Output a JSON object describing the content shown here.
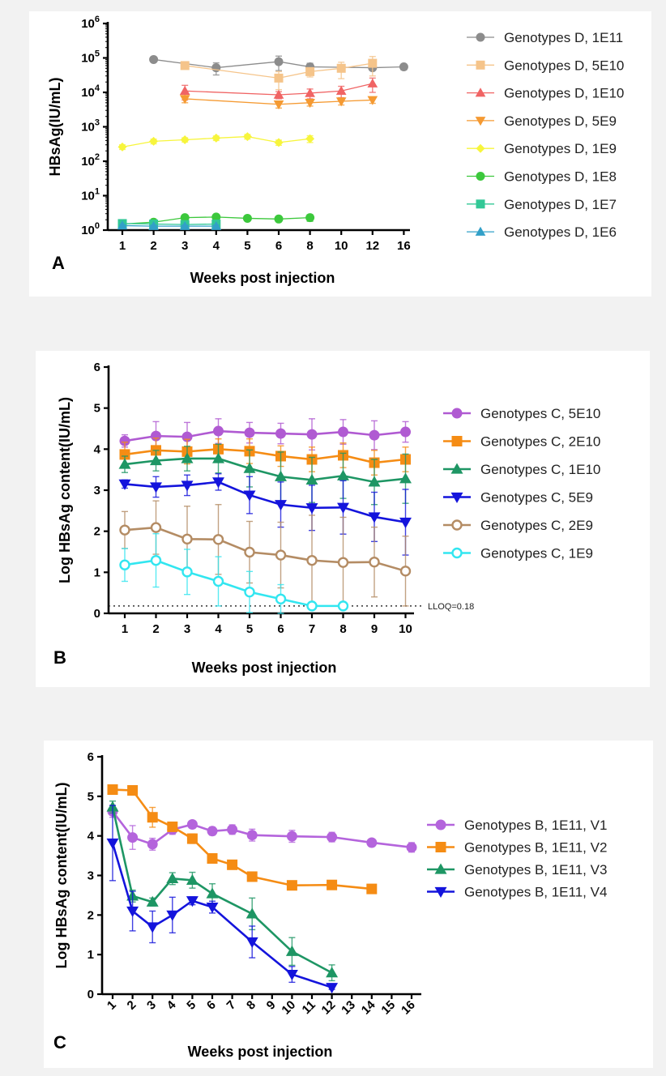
{
  "chart_data": [
    {
      "panel": "A",
      "type": "line",
      "yscale": "log",
      "ylabel": "HBsAg(IU/mL)",
      "xlabel": "Weeks post injection",
      "ylim": [
        1,
        1000000
      ],
      "ytick_exponents": [
        "0",
        "1",
        "2",
        "3",
        "4",
        "5",
        "6"
      ],
      "ytick_base": "10",
      "categories": [
        "1",
        "2",
        "3",
        "4",
        "5",
        "6",
        "8",
        "10",
        "12",
        "16"
      ],
      "series": [
        {
          "name": "Genotypes D, 1E11",
          "color": "#8c8c8c",
          "marker": "circle",
          "x": [
            "2",
            "4",
            "6",
            "8",
            "12",
            "16"
          ],
          "values": [
            90000,
            52000,
            78000,
            55000,
            52000,
            55000
          ],
          "err": [
            0,
            20000,
            35000,
            15000,
            8000,
            10000
          ]
        },
        {
          "name": "Genotypes D, 5E10",
          "color": "#f5c48a",
          "marker": "square",
          "x": [
            "3",
            "6",
            "8",
            "10",
            "12"
          ],
          "values": [
            60000,
            26000,
            40000,
            50000,
            70000
          ],
          "err": [
            8000,
            14000,
            12000,
            25000,
            40000
          ]
        },
        {
          "name": "Genotypes D, 1E10",
          "color": "#f06464",
          "marker": "triangle-up",
          "x": [
            "3",
            "6",
            "8",
            "10",
            "12"
          ],
          "values": [
            11000,
            8500,
            9500,
            11000,
            18000
          ],
          "err": [
            5000,
            2000,
            3000,
            4000,
            8000
          ]
        },
        {
          "name": "Genotypes D, 5E9",
          "color": "#f59a32",
          "marker": "triangle-down",
          "x": [
            "3",
            "6",
            "8",
            "10",
            "12"
          ],
          "values": [
            6500,
            4500,
            5000,
            5500,
            6000
          ],
          "err": [
            1500,
            1000,
            1000,
            1200,
            1200
          ]
        },
        {
          "name": "Genotypes D, 1E9",
          "color": "#f7f53c",
          "marker": "diamond",
          "x": [
            "1",
            "2",
            "3",
            "4",
            "5",
            "6",
            "8"
          ],
          "values": [
            260,
            380,
            420,
            470,
            520,
            350,
            450
          ],
          "err": [
            40,
            60,
            60,
            70,
            80,
            60,
            100
          ]
        },
        {
          "name": "Genotypes D, 1E8",
          "color": "#3cc83c",
          "marker": "circle",
          "x": [
            "1",
            "2",
            "3",
            "4",
            "5",
            "6",
            "8"
          ],
          "values": [
            1.5,
            1.7,
            2.3,
            2.4,
            2.2,
            2.1,
            2.3
          ],
          "err": [
            0.2,
            0.3,
            0.4,
            0.4,
            0.3,
            0.3,
            0.5
          ]
        },
        {
          "name": "Genotypes D, 1E7",
          "color": "#32c896",
          "marker": "square",
          "x": [
            "1",
            "2",
            "3",
            "4"
          ],
          "values": [
            1.55,
            1.5,
            1.45,
            1.5
          ],
          "err": [
            0.15,
            0.15,
            0.15,
            0.15
          ]
        },
        {
          "name": "Genotypes D, 1E6",
          "color": "#32a0c8",
          "marker": "triangle-up",
          "x": [
            "1",
            "2",
            "3",
            "4"
          ],
          "values": [
            1.35,
            1.3,
            1.3,
            1.3
          ],
          "err": [
            0.1,
            0.1,
            0.1,
            0.1
          ]
        }
      ]
    },
    {
      "panel": "B",
      "type": "line",
      "ylabel": "Log HBsAg content(IU/mL)",
      "xlabel": "Weeks post injection",
      "ylim": [
        0,
        6
      ],
      "yticks": [
        "0",
        "1",
        "2",
        "3",
        "4",
        "5",
        "6"
      ],
      "categories": [
        "1",
        "2",
        "3",
        "4",
        "5",
        "6",
        "7",
        "8",
        "9",
        "10"
      ],
      "lloq": {
        "value": 0.18,
        "label": "LLOQ=0.18"
      },
      "series": [
        {
          "name": "Genotypes C, 5E10",
          "color": "#b05ad2",
          "marker": "circle",
          "values": [
            4.2,
            4.32,
            4.3,
            4.44,
            4.4,
            4.38,
            4.36,
            4.42,
            4.34,
            4.42
          ],
          "err": [
            0.15,
            0.35,
            0.35,
            0.3,
            0.25,
            0.25,
            0.38,
            0.3,
            0.35,
            0.25
          ]
        },
        {
          "name": "Genotypes C, 2E10",
          "color": "#f58c14",
          "marker": "square",
          "values": [
            3.87,
            3.97,
            3.94,
            4.0,
            3.95,
            3.83,
            3.75,
            3.85,
            3.67,
            3.75
          ],
          "err": [
            0.3,
            0.3,
            0.3,
            0.25,
            0.3,
            0.25,
            0.3,
            0.3,
            0.3,
            0.3
          ]
        },
        {
          "name": "Genotypes C, 1E10",
          "color": "#1e9664",
          "marker": "triangle-up",
          "values": [
            3.63,
            3.72,
            3.77,
            3.77,
            3.53,
            3.33,
            3.25,
            3.35,
            3.2,
            3.28
          ],
          "err": [
            0.2,
            0.25,
            0.3,
            0.35,
            0.45,
            0.6,
            0.55,
            0.55,
            0.55,
            0.6
          ]
        },
        {
          "name": "Genotypes C, 5E9",
          "color": "#1414dc",
          "marker": "triangle-down",
          "values": [
            3.15,
            3.08,
            3.12,
            3.2,
            2.88,
            2.65,
            2.57,
            2.58,
            2.35,
            2.22
          ],
          "err": [
            0.1,
            0.25,
            0.25,
            0.2,
            0.45,
            0.55,
            0.55,
            0.65,
            0.6,
            0.8
          ]
        },
        {
          "name": "Genotypes C, 2E9",
          "color": "#b48c64",
          "marker": "circle-open",
          "values": [
            2.03,
            2.09,
            1.81,
            1.8,
            1.49,
            1.42,
            1.29,
            1.24,
            1.25,
            1.03
          ],
          "err": [
            0.45,
            0.65,
            0.8,
            0.85,
            0.75,
            0.8,
            1.1,
            1.1,
            0.85,
            0.85
          ]
        },
        {
          "name": "Genotypes C, 1E9",
          "color": "#32e6f0",
          "marker": "circle-open",
          "values": [
            1.18,
            1.29,
            1.01,
            0.78,
            0.52,
            0.35,
            0.18,
            0.18,
            null,
            null
          ],
          "err": [
            0.4,
            0.65,
            0.55,
            0.6,
            0.5,
            0.35,
            0,
            0,
            0,
            0
          ]
        }
      ]
    },
    {
      "panel": "C",
      "type": "line",
      "ylabel": "Log HBsAg content(IU/mL)",
      "xlabel": "Weeks post injection",
      "ylim": [
        0,
        6
      ],
      "yticks": [
        "0",
        "1",
        "2",
        "3",
        "4",
        "5",
        "6"
      ],
      "categories": [
        "1",
        "2",
        "3",
        "4",
        "5",
        "6",
        "7",
        "8",
        "9",
        "10",
        "11",
        "12",
        "13",
        "14",
        "15",
        "16"
      ],
      "series": [
        {
          "name": "Genotypes B, 1E11, V1",
          "color": "#b464dc",
          "marker": "circle",
          "x": [
            "1",
            "2",
            "3",
            "4",
            "5",
            "6",
            "7",
            "8",
            "10",
            "12",
            "14",
            "16"
          ],
          "values": [
            4.62,
            3.96,
            3.79,
            4.16,
            4.29,
            4.12,
            4.16,
            4.02,
            3.99,
            3.97,
            3.83,
            3.71
          ],
          "err": [
            0.15,
            0.3,
            0.15,
            0.12,
            0.08,
            0.1,
            0.12,
            0.15,
            0.15,
            0.12,
            0.08,
            0.12
          ]
        },
        {
          "name": "Genotypes B, 1E11, V2",
          "color": "#f58c14",
          "marker": "square",
          "x": [
            "1",
            "2",
            "3",
            "4",
            "5",
            "6",
            "7",
            "8",
            "10",
            "12",
            "14"
          ],
          "values": [
            5.17,
            5.15,
            4.47,
            4.23,
            3.93,
            3.43,
            3.27,
            2.97,
            2.75,
            2.76,
            2.66
          ],
          "err": [
            0.05,
            0.08,
            0.25,
            0.1,
            0.12,
            0.1,
            0.08,
            0.1,
            0.08,
            0.1,
            0.08
          ]
        },
        {
          "name": "Genotypes B, 1E11, V3",
          "color": "#1e9664",
          "marker": "triangle-up",
          "x": [
            "1",
            "2",
            "3",
            "4",
            "5",
            "6",
            "8",
            "10",
            "12"
          ],
          "values": [
            4.73,
            2.48,
            2.33,
            2.92,
            2.88,
            2.54,
            2.03,
            1.08,
            0.54
          ],
          "err": [
            0.15,
            0.15,
            0.1,
            0.15,
            0.2,
            0.25,
            0.4,
            0.35,
            0.2
          ]
        },
        {
          "name": "Genotypes B, 1E11, V4",
          "color": "#1414dc",
          "marker": "triangle-down",
          "x": [
            "1",
            "2",
            "3",
            "4",
            "5",
            "6",
            "8",
            "10",
            "12"
          ],
          "values": [
            3.82,
            2.1,
            1.7,
            2.0,
            2.36,
            2.2,
            1.32,
            0.5,
            0.17
          ],
          "err": [
            0.95,
            0.5,
            0.4,
            0.45,
            0.1,
            0.15,
            0.4,
            0.2,
            0.05
          ]
        }
      ]
    }
  ]
}
